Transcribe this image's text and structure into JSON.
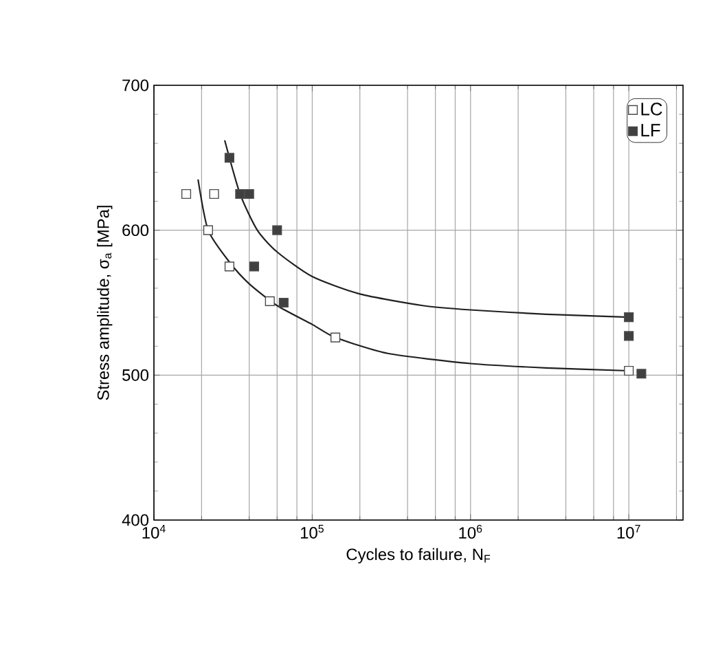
{
  "chart_data": {
    "type": "scatter",
    "xlabel": "Cycles to failure, N$_{F}$",
    "ylabel": "Stress amplitude, σ$_{a}$ [MPa]",
    "log": "x",
    "xlim": [
      10000,
      22000000
    ],
    "ylim": [
      400,
      700
    ],
    "xticks": [
      {
        "value": 10000,
        "label": "10$^{4}$"
      },
      {
        "value": 100000,
        "label": "10$^{5}$"
      },
      {
        "value": 1000000,
        "label": "10$^{6}$"
      },
      {
        "value": 10000000,
        "label": "10$^{7}$"
      }
    ],
    "yticks": [
      400,
      500,
      600,
      700
    ],
    "grid": true,
    "legend": "top right",
    "marker": "square",
    "series": [
      {
        "name": "LC",
        "color": "#ffffff",
        "x": [
          16000,
          24000,
          22000,
          30000,
          54000,
          140000,
          10000000
        ],
        "values": [
          625,
          625,
          600,
          575,
          551,
          526,
          503
        ]
      },
      {
        "name": "LF",
        "color": "#404040",
        "x": [
          30000,
          35000,
          40000,
          60000,
          43000,
          66000,
          10000000,
          10000000,
          12000000
        ],
        "values": [
          650,
          625,
          625,
          600,
          575,
          550,
          540,
          527,
          501
        ]
      },
      {
        "type": "line",
        "marker": "none",
        "color": "#202020",
        "x": [
          19000,
          22000,
          30000,
          40000,
          60000,
          100000,
          140000,
          300000,
          1000000,
          3000000,
          10000000
        ],
        "values": [
          635,
          600,
          578,
          563,
          548,
          535,
          526,
          515,
          508,
          505,
          503
        ]
      },
      {
        "type": "line",
        "marker": "none",
        "color": "#202020",
        "x": [
          28000,
          35000,
          45000,
          60000,
          100000,
          200000,
          500000,
          1000000,
          3000000,
          10000000
        ],
        "values": [
          662,
          625,
          600,
          585,
          568,
          556,
          548,
          545,
          542,
          540
        ]
      }
    ]
  }
}
